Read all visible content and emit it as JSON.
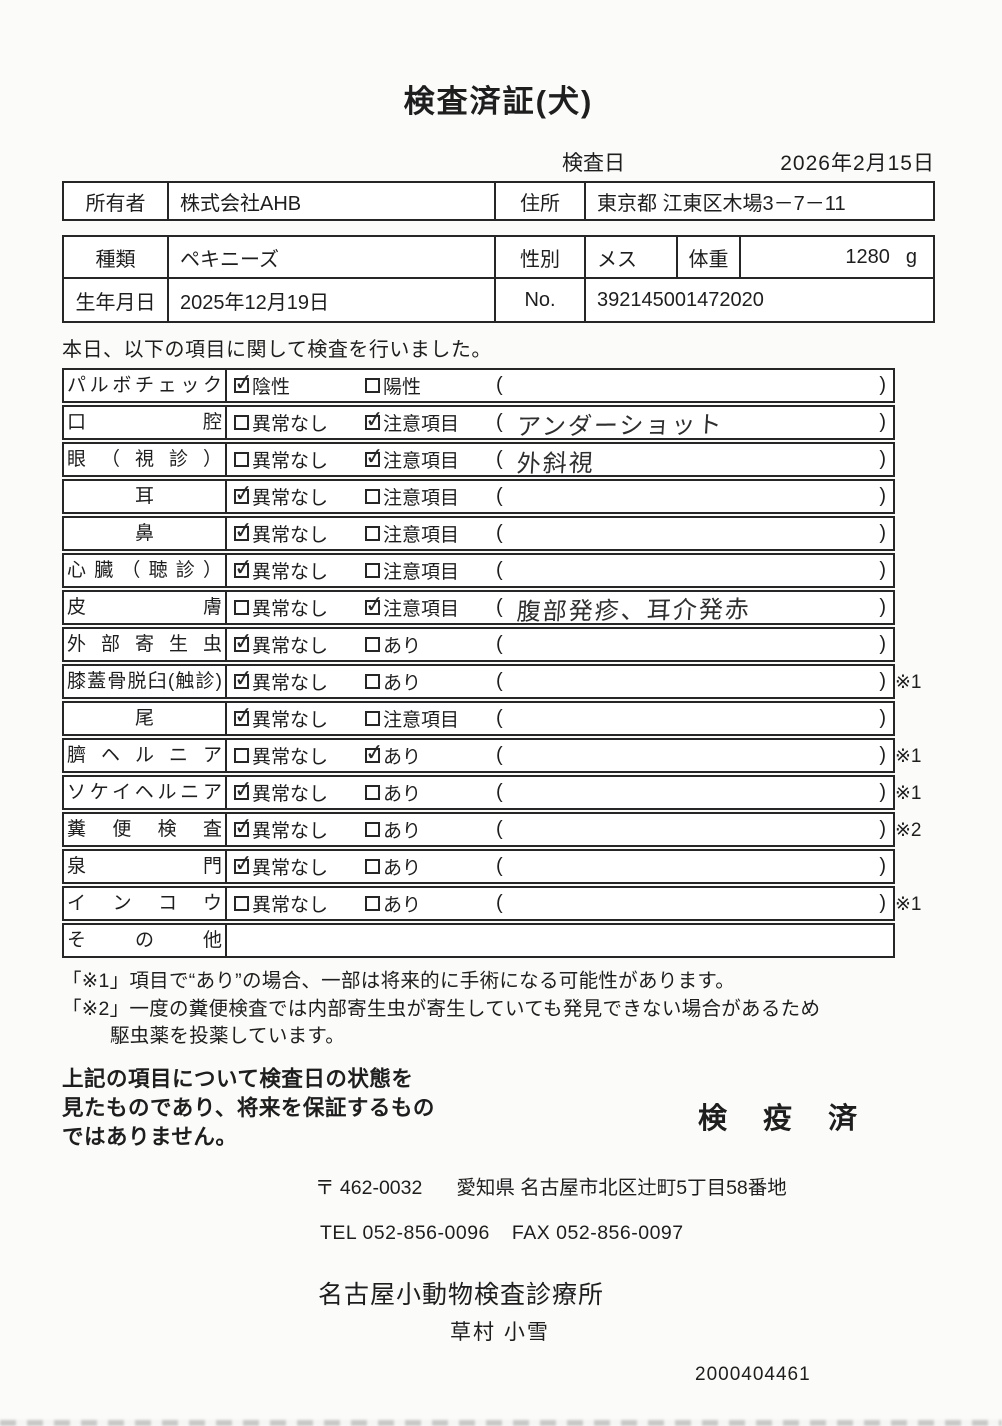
{
  "page": {
    "title": "検査済証(犬)",
    "exam_date_label": "検査日",
    "exam_date": "2026年2月15日"
  },
  "owner": {
    "label": "所有者",
    "name": "株式会社AHB",
    "address_label": "住所",
    "address": "東京都 江東区木場3－7－11"
  },
  "animal": {
    "species_label": "種類",
    "species": "ペキニーズ",
    "sex_label": "性別",
    "sex": "メス",
    "weight_label": "体重",
    "weight": "1280",
    "weight_unit": "g",
    "birth_label": "生年月日",
    "birth": "2025年12月19日",
    "no_label": "No.",
    "no": "392145001472020"
  },
  "exam": {
    "intro": "本日、以下の項目に関して検査を行いました。",
    "paren_open": "(",
    "paren_close": ")",
    "rows": [
      {
        "label": "パルボチェック",
        "opt1": "陰性",
        "opt1_checked": true,
        "opt2": "陽性",
        "opt2_checked": false,
        "note": "",
        "ref": ""
      },
      {
        "label": "口腔",
        "opt1": "異常なし",
        "opt1_checked": false,
        "opt2": "注意項目",
        "opt2_checked": true,
        "note": "アンダーショット",
        "ref": ""
      },
      {
        "label": "眼（視診）",
        "opt1": "異常なし",
        "opt1_checked": false,
        "opt2": "注意項目",
        "opt2_checked": true,
        "note": "外斜視",
        "ref": ""
      },
      {
        "label": "耳",
        "opt1": "異常なし",
        "opt1_checked": true,
        "opt2": "注意項目",
        "opt2_checked": false,
        "note": "",
        "ref": ""
      },
      {
        "label": "鼻",
        "opt1": "異常なし",
        "opt1_checked": true,
        "opt2": "注意項目",
        "opt2_checked": false,
        "note": "",
        "ref": ""
      },
      {
        "label": "心臓（聴診）",
        "opt1": "異常なし",
        "opt1_checked": true,
        "opt2": "注意項目",
        "opt2_checked": false,
        "note": "",
        "ref": ""
      },
      {
        "label": "皮膚",
        "opt1": "異常なし",
        "opt1_checked": false,
        "opt2": "注意項目",
        "opt2_checked": true,
        "note": "腹部発疹、耳介発赤",
        "ref": ""
      },
      {
        "label": "外部寄生虫",
        "opt1": "異常なし",
        "opt1_checked": true,
        "opt2": "あり",
        "opt2_checked": false,
        "note": "",
        "ref": ""
      },
      {
        "label": "膝蓋骨脱臼(触診)",
        "opt1": "異常なし",
        "opt1_checked": true,
        "opt2": "あり",
        "opt2_checked": false,
        "note": "",
        "ref": "※1"
      },
      {
        "label": "尾",
        "opt1": "異常なし",
        "opt1_checked": true,
        "opt2": "注意項目",
        "opt2_checked": false,
        "note": "",
        "ref": ""
      },
      {
        "label": "臍ヘルニア",
        "opt1": "異常なし",
        "opt1_checked": false,
        "opt2": "あり",
        "opt2_checked": true,
        "note": "",
        "ref": "※1"
      },
      {
        "label": "ソケイヘルニア",
        "opt1": "異常なし",
        "opt1_checked": true,
        "opt2": "あり",
        "opt2_checked": false,
        "note": "",
        "ref": "※1"
      },
      {
        "label": "糞便検査",
        "opt1": "異常なし",
        "opt1_checked": true,
        "opt2": "あり",
        "opt2_checked": false,
        "note": "",
        "ref": "※2"
      },
      {
        "label": "泉門",
        "opt1": "異常なし",
        "opt1_checked": true,
        "opt2": "あり",
        "opt2_checked": false,
        "note": "",
        "ref": ""
      },
      {
        "label": "インコウ",
        "opt1": "異常なし",
        "opt1_checked": false,
        "opt2": "あり",
        "opt2_checked": false,
        "note": "",
        "ref": "※1"
      },
      {
        "label": "その他"
      }
    ]
  },
  "notes": {
    "note1": "「※1」項目で“あり”の場合、一部は将来的に手術になる可能性があります。",
    "note2": "「※2」一度の糞便検査では内部寄生虫が寄生していても発見できない場合があるため",
    "note2b": "駆虫薬を投薬しています。"
  },
  "footer": {
    "statement_line1": "上記の項目について検査日の状態を",
    "statement_line2": "見たものであり、将来を保証するもの",
    "statement_line3": "ではありません。",
    "stamp": "検 疫 済",
    "postal": "〒 462-0032",
    "address": "愛知県 名古屋市北区辻町5丁目58番地",
    "tel": "TEL 052-856-0096",
    "fax": "FAX 052-856-0097",
    "clinic": "名古屋小動物検査診療所",
    "vet": "草村 小雪",
    "serial": "2000404461"
  }
}
